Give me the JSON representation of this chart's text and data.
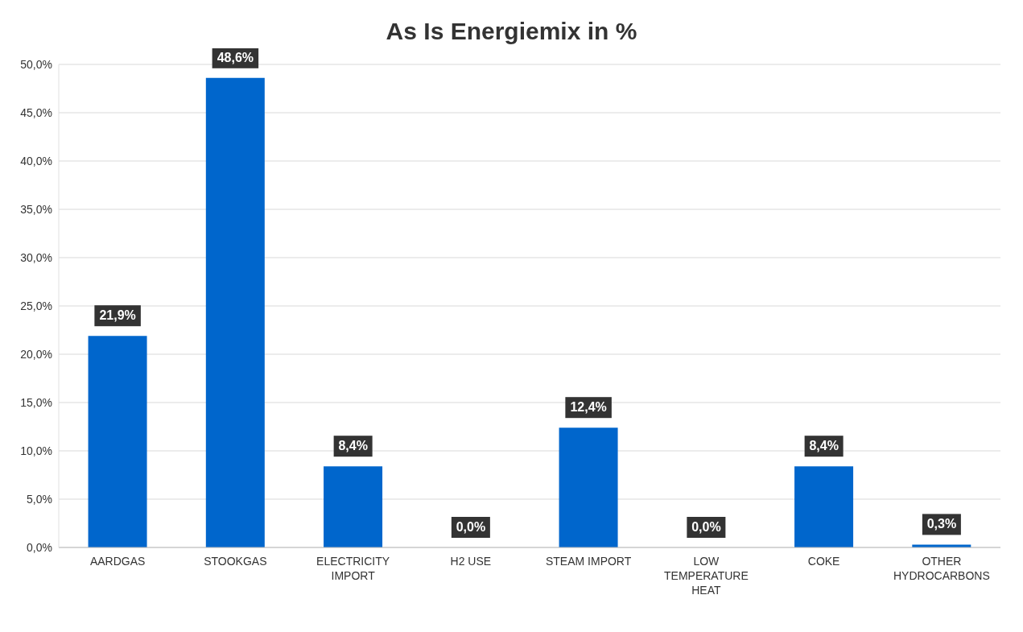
{
  "chart_data": {
    "type": "bar",
    "title": "As Is Energiemix in %",
    "categories": [
      "AARDGAS",
      "STOOKGAS",
      "ELECTRICITY IMPORT",
      "H2 USE",
      "STEAM IMPORT",
      "LOW TEMPERATURE HEAT",
      "COKE",
      "OTHER HYDROCARBONS"
    ],
    "values": [
      21.9,
      48.6,
      8.4,
      0.0,
      12.4,
      0.0,
      8.4,
      0.3
    ],
    "value_labels": [
      "21,9%",
      "48,6%",
      "8,4%",
      "0,0%",
      "12,4%",
      "0,0%",
      "8,4%",
      "0,3%"
    ],
    "color": "#0066cc",
    "ylim": [
      0,
      50
    ],
    "yticks": [
      {
        "value": 0,
        "label": "0,0%"
      },
      {
        "value": 5,
        "label": "5,0%"
      },
      {
        "value": 10,
        "label": "10,0%"
      },
      {
        "value": 15,
        "label": "15,0%"
      },
      {
        "value": 20,
        "label": "20,0%"
      },
      {
        "value": 25,
        "label": "25,0%"
      },
      {
        "value": 30,
        "label": "30,0%"
      },
      {
        "value": 35,
        "label": "35,0%"
      },
      {
        "value": 40,
        "label": "40,0%"
      },
      {
        "value": 45,
        "label": "45,0%"
      },
      {
        "value": 50,
        "label": "50,0%"
      }
    ],
    "grid": "y"
  }
}
